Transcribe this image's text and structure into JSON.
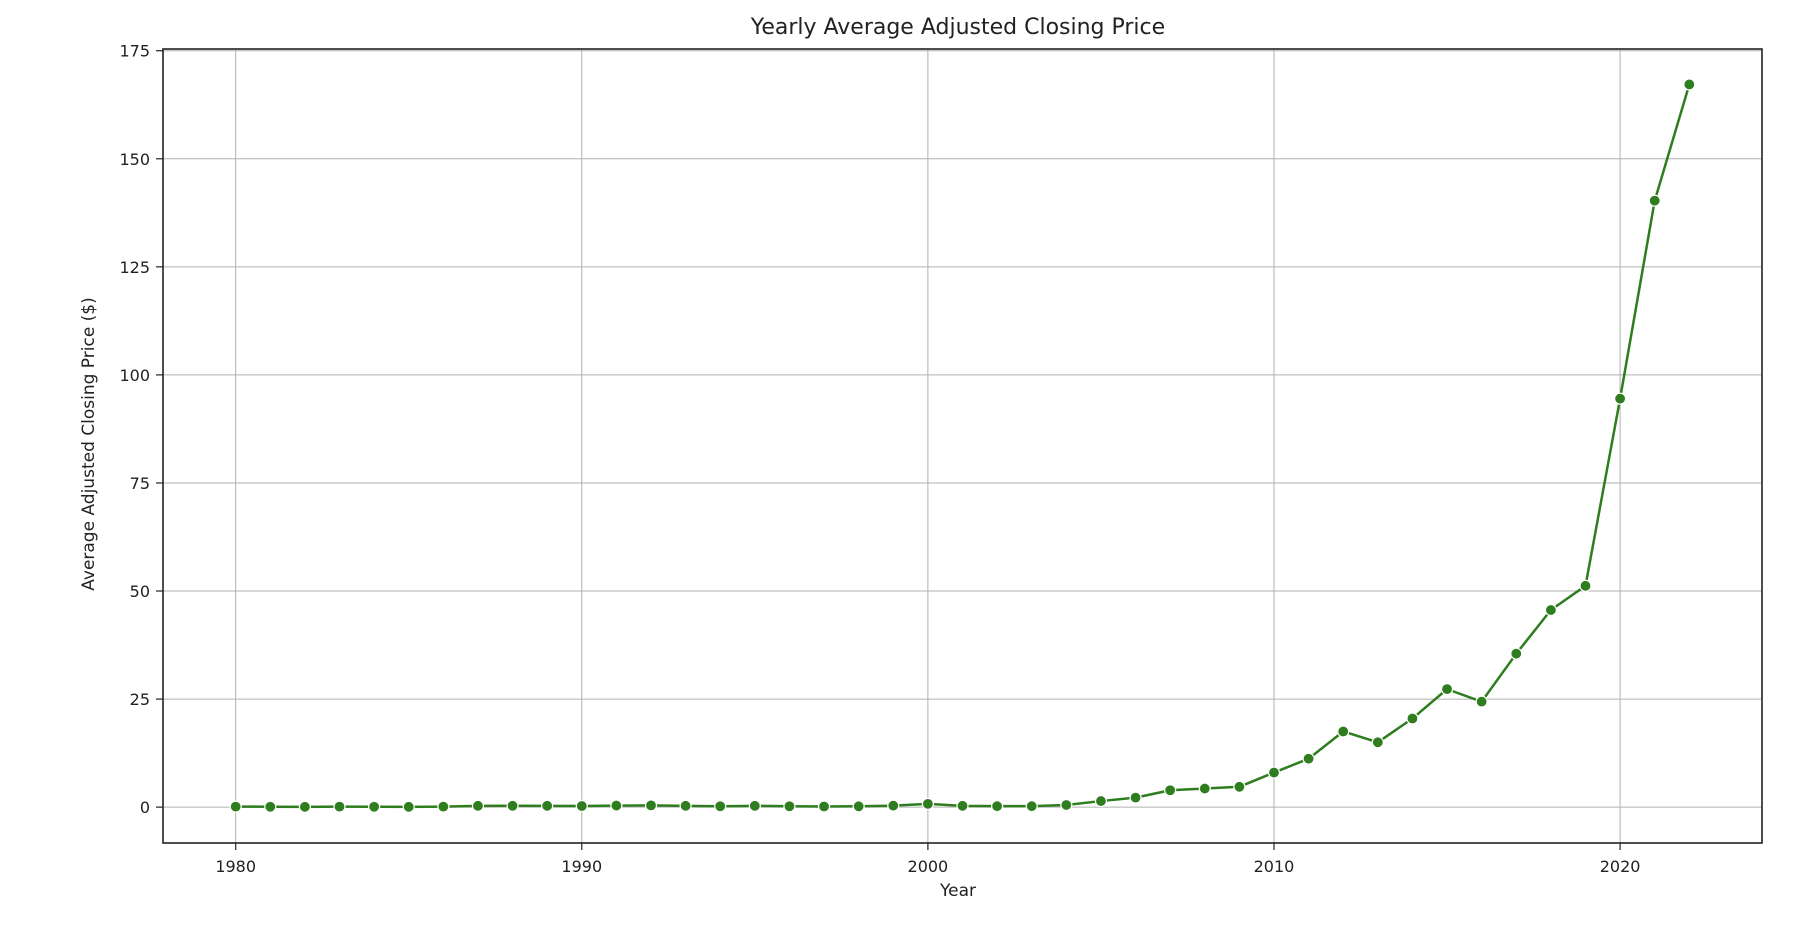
{
  "chart_data": {
    "type": "line",
    "title": "Yearly Average Adjusted Closing Price",
    "xlabel": "Year",
    "ylabel": "Average Adjusted Closing Price ($)",
    "xlim": [
      1977.9,
      2024.1
    ],
    "ylim": [
      -8.3,
      175.4
    ],
    "xticks": [
      1980,
      1990,
      2000,
      2010,
      2020
    ],
    "yticks": [
      0,
      25,
      50,
      75,
      100,
      125,
      150,
      175
    ],
    "xtick_labels": [
      "1980",
      "1990",
      "2000",
      "2010",
      "2020"
    ],
    "ytick_labels": [
      "0",
      "25",
      "50",
      "75",
      "100",
      "125",
      "150",
      "175"
    ],
    "grid": true,
    "legend": false,
    "line_color": "#2e7d1e",
    "x": [
      1980,
      1981,
      1982,
      1983,
      1984,
      1985,
      1986,
      1987,
      1988,
      1989,
      1990,
      1991,
      1992,
      1993,
      1994,
      1995,
      1996,
      1997,
      1998,
      1999,
      2000,
      2001,
      2002,
      2003,
      2004,
      2005,
      2006,
      2007,
      2008,
      2009,
      2010,
      2011,
      2012,
      2013,
      2014,
      2015,
      2016,
      2017,
      2018,
      2019,
      2020,
      2021,
      2022
    ],
    "series": [
      {
        "values": [
          0.12,
          0.09,
          0.07,
          0.12,
          0.09,
          0.07,
          0.11,
          0.3,
          0.31,
          0.3,
          0.26,
          0.36,
          0.4,
          0.3,
          0.2,
          0.3,
          0.2,
          0.14,
          0.19,
          0.34,
          0.75,
          0.3,
          0.22,
          0.22,
          0.5,
          1.4,
          2.2,
          3.9,
          4.3,
          4.7,
          8.0,
          11.2,
          17.5,
          15.0,
          20.5,
          27.3,
          24.4,
          35.5,
          45.6,
          51.2,
          94.5,
          140.3,
          167.2
        ]
      }
    ]
  }
}
